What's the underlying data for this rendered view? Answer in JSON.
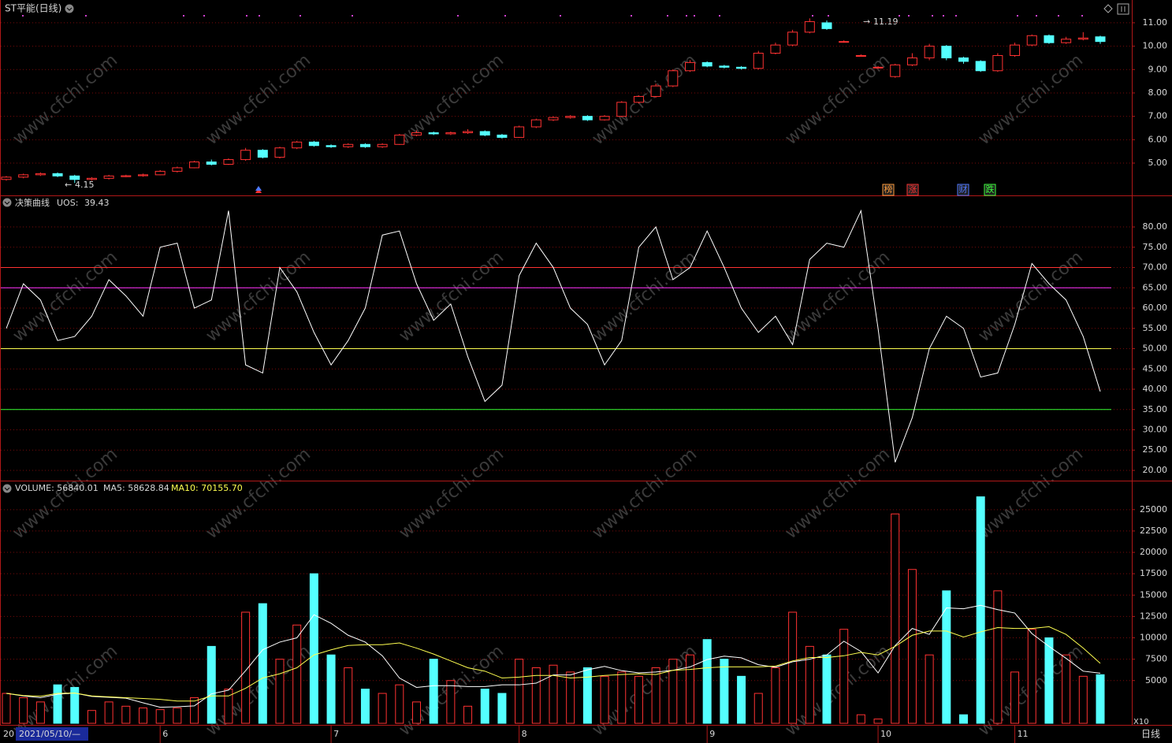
{
  "title": "ST平能(日线)",
  "watermark": "www.cfchi.com",
  "x_axis": {
    "start": "20",
    "cursor": "2021/05/10/—",
    "period": "日线",
    "categories": [
      null,
      null,
      null,
      null,
      null,
      null,
      null,
      null,
      null,
      "6",
      null,
      null,
      null,
      null,
      null,
      null,
      null,
      null,
      null,
      "7",
      null,
      null,
      null,
      null,
      null,
      null,
      null,
      null,
      null,
      null,
      "8",
      null,
      null,
      null,
      null,
      null,
      null,
      null,
      null,
      null,
      null,
      "9",
      null,
      null,
      null,
      null,
      null,
      null,
      null,
      null,
      null,
      "10",
      null,
      null,
      null,
      null,
      null,
      null,
      null,
      "11",
      null,
      null,
      null,
      null,
      null,
      null
    ]
  },
  "chart_data": [
    {
      "type": "candlestick",
      "open": [
        4.3,
        4.4,
        4.5,
        4.55,
        4.45,
        4.3,
        4.35,
        4.42,
        4.46,
        4.5,
        4.65,
        4.8,
        5.05,
        4.95,
        5.15,
        5.55,
        5.25,
        5.65,
        5.9,
        5.75,
        5.7,
        5.8,
        5.7,
        5.8,
        6.2,
        6.3,
        6.25,
        6.3,
        6.35,
        6.2,
        6.1,
        6.55,
        6.85,
        6.95,
        7.0,
        6.85,
        7.0,
        7.6,
        7.85,
        8.3,
        8.95,
        9.3,
        9.15,
        9.1,
        9.05,
        9.7,
        10.05,
        10.6,
        11.0,
        10.2,
        9.6,
        9.1,
        8.7,
        9.2,
        9.5,
        10.0,
        9.5,
        9.35,
        8.95,
        9.6,
        10.05,
        10.45,
        10.15,
        10.3,
        10.4
      ],
      "close": [
        4.4,
        4.5,
        4.55,
        4.45,
        4.3,
        4.35,
        4.45,
        4.46,
        4.5,
        4.65,
        4.8,
        5.05,
        4.95,
        5.15,
        5.55,
        5.25,
        5.65,
        5.9,
        5.75,
        5.7,
        5.8,
        5.7,
        5.8,
        6.2,
        6.3,
        6.25,
        6.3,
        6.35,
        6.2,
        6.1,
        6.55,
        6.85,
        6.95,
        7.0,
        6.85,
        7.0,
        7.6,
        7.85,
        8.3,
        8.95,
        9.3,
        9.15,
        9.1,
        9.05,
        9.7,
        10.05,
        10.6,
        11.05,
        10.75,
        10.2,
        9.6,
        9.1,
        9.2,
        9.5,
        10.0,
        9.5,
        9.35,
        8.95,
        9.6,
        10.05,
        10.45,
        10.15,
        10.3,
        10.35,
        10.2
      ],
      "high": [
        4.45,
        4.55,
        4.6,
        4.6,
        4.5,
        4.4,
        4.5,
        4.5,
        4.55,
        4.7,
        4.85,
        5.1,
        5.15,
        5.2,
        5.65,
        5.6,
        5.7,
        5.95,
        5.95,
        5.8,
        5.85,
        5.85,
        5.85,
        6.25,
        6.4,
        6.35,
        6.35,
        6.45,
        6.4,
        6.25,
        6.6,
        6.9,
        7.0,
        7.05,
        7.05,
        7.05,
        7.65,
        7.9,
        8.4,
        9.0,
        9.4,
        9.35,
        9.2,
        9.15,
        9.8,
        10.15,
        10.7,
        11.19,
        11.1,
        10.25,
        9.65,
        9.15,
        9.25,
        9.7,
        10.1,
        10.05,
        9.55,
        9.4,
        9.7,
        10.15,
        10.5,
        10.5,
        10.4,
        10.6,
        10.45
      ],
      "low": [
        4.25,
        4.35,
        4.45,
        4.4,
        4.15,
        4.25,
        4.3,
        4.4,
        4.42,
        4.48,
        4.6,
        4.78,
        4.9,
        4.92,
        5.1,
        5.2,
        5.2,
        5.6,
        5.7,
        5.65,
        5.65,
        5.65,
        5.65,
        5.78,
        6.15,
        6.2,
        6.2,
        6.25,
        6.15,
        6.05,
        6.08,
        6.5,
        6.8,
        6.9,
        6.8,
        6.82,
        6.98,
        7.55,
        7.8,
        8.25,
        8.9,
        9.1,
        9.05,
        9.0,
        9.0,
        9.65,
        10.0,
        10.55,
        10.7,
        10.15,
        9.55,
        9.05,
        8.65,
        9.15,
        9.4,
        9.4,
        9.25,
        8.9,
        8.9,
        9.55,
        10.0,
        10.1,
        10.1,
        10.25,
        10.1
      ],
      "up_color": "#ff3232",
      "down_color": "#54ffff",
      "ylim": [
        3.72,
        11.84
      ],
      "yticks": [
        {
          "value": 5,
          "label": "5.00"
        },
        {
          "value": 6,
          "label": "6.00"
        },
        {
          "value": 7,
          "label": "7.00"
        },
        {
          "value": 8,
          "label": "8.00"
        },
        {
          "value": 9,
          "label": "9.00"
        },
        {
          "value": 10,
          "label": "10.00"
        },
        {
          "value": 11,
          "label": "11.00"
        }
      ],
      "grid": true,
      "annotations": [
        "4.15",
        "11.19"
      ],
      "signals": [
        {
          "label": "榜",
          "color": "#ff9c3c"
        },
        {
          "label": "涨",
          "color": "#ff3232"
        },
        {
          "label": "财",
          "color": "#5078ff"
        },
        {
          "label": "跌",
          "color": "#3cff3c"
        }
      ]
    },
    {
      "type": "line",
      "title": "决策曲线",
      "series": [
        {
          "name": "UOS:",
          "color": "#ffffff",
          "values": [
            55,
            66,
            62,
            52,
            53,
            58,
            67,
            63,
            58,
            75,
            76,
            60,
            62,
            84,
            46,
            44,
            70,
            64,
            54,
            46,
            52,
            60,
            78,
            79,
            66,
            57,
            61,
            48,
            37,
            41,
            68,
            76,
            70,
            60,
            56,
            46,
            52,
            75,
            80,
            67,
            70,
            79,
            70,
            60,
            54,
            58,
            51,
            72,
            76,
            75,
            84,
            55,
            22,
            33,
            50,
            58,
            55,
            43,
            44,
            56,
            71,
            66,
            62,
            53,
            39.43
          ]
        }
      ],
      "levels": [
        {
          "value": 70,
          "color": "#ff3232"
        },
        {
          "value": 65,
          "color": "#ff32ff"
        },
        {
          "value": 50,
          "color": "#ffff50"
        },
        {
          "value": 35,
          "color": "#32ff32"
        }
      ],
      "ylim": [
        18.25,
        87
      ],
      "yticks": [
        {
          "value": 20,
          "label": "20.00"
        },
        {
          "value": 25,
          "label": "25.00"
        },
        {
          "value": 30,
          "label": "30.00"
        },
        {
          "value": 35,
          "label": "35.00"
        },
        {
          "value": 40,
          "label": "40.00"
        },
        {
          "value": 45,
          "label": "45.00"
        },
        {
          "value": 50,
          "label": "50.00"
        },
        {
          "value": 55,
          "label": "55.00"
        },
        {
          "value": 60,
          "label": "60.00"
        },
        {
          "value": 65,
          "label": "65.00"
        },
        {
          "value": 70,
          "label": "70.00"
        },
        {
          "value": 75,
          "label": "75.00"
        },
        {
          "value": 80,
          "label": "80.00"
        }
      ],
      "grid": true
    },
    {
      "type": "bar",
      "legend": [
        {
          "text": "VOLUME: 56840.01",
          "color": "#ffffff"
        },
        {
          "text": "MA5: 58628.84",
          "color": "#ffffff"
        },
        {
          "text": "MA10: 70155.70",
          "color": "#ffff50"
        }
      ],
      "values": [
        3500,
        3000,
        2500,
        4500,
        4200,
        1500,
        2500,
        2000,
        1800,
        1600,
        1800,
        3000,
        9000,
        4000,
        13000,
        14000,
        7500,
        11500,
        17500,
        8000,
        6500,
        4000,
        3500,
        4500,
        2500,
        7500,
        5000,
        2000,
        4000,
        3500,
        7500,
        6500,
        6800,
        6000,
        6500,
        5500,
        6000,
        5500,
        6500,
        7500,
        8000,
        9800,
        7500,
        5500,
        3500,
        6500,
        13000,
        9000,
        8000,
        11000,
        1000,
        500,
        24500,
        18000,
        8000,
        15500,
        1000,
        26500,
        15500,
        6000,
        11000,
        10000,
        8000,
        5500,
        5684
      ],
      "series": [
        {
          "name": "MA5",
          "color": "#ffffff",
          "values": [
            3500,
            3200,
            3000,
            3400,
            3540,
            3140,
            3040,
            2940,
            2400,
            1880,
            1940,
            2040,
            3440,
            3880,
            6160,
            8600,
            9500,
            10000,
            12700,
            11700,
            10300,
            9500,
            7900,
            5300,
            4200,
            4400,
            4400,
            4300,
            4300,
            4500,
            4500,
            4700,
            5660,
            5660,
            6260,
            6660,
            6160,
            5900,
            6000,
            6200,
            6600,
            7460,
            7860,
            7660,
            6860,
            6560,
            7200,
            7500,
            8000,
            9600,
            8400,
            5900,
            9100,
            11100,
            10400,
            13500,
            13400,
            13800,
            13300,
            12900,
            10500,
            9000,
            7600,
            6100,
            5862.88
          ]
        },
        {
          "name": "MA10",
          "color": "#ffff50",
          "values": [
            3500,
            3250,
            3170,
            3500,
            3540,
            3200,
            3100,
            3000,
            2900,
            2800,
            2600,
            2600,
            3200,
            3200,
            4100,
            5300,
            5800,
            6500,
            8000,
            8600,
            9100,
            9200,
            9200,
            9400,
            8800,
            8100,
            7300,
            6500,
            6100,
            5300,
            5400,
            5600,
            5600,
            5300,
            5400,
            5600,
            5700,
            5800,
            5700,
            6200,
            6300,
            6500,
            6600,
            6600,
            6600,
            6700,
            7300,
            7700,
            7700,
            7900,
            8300,
            8000,
            9000,
            10300,
            10800,
            10800,
            10100,
            10700,
            11200,
            11100,
            11100,
            11300,
            10400,
            8800,
            7015.57
          ]
        }
      ],
      "unit": "X10",
      "ylim": [
        0,
        26550
      ],
      "yticks": [
        5000,
        7500,
        10000,
        12500,
        15000,
        17500,
        20000,
        22500,
        25000
      ],
      "grid": true
    }
  ]
}
